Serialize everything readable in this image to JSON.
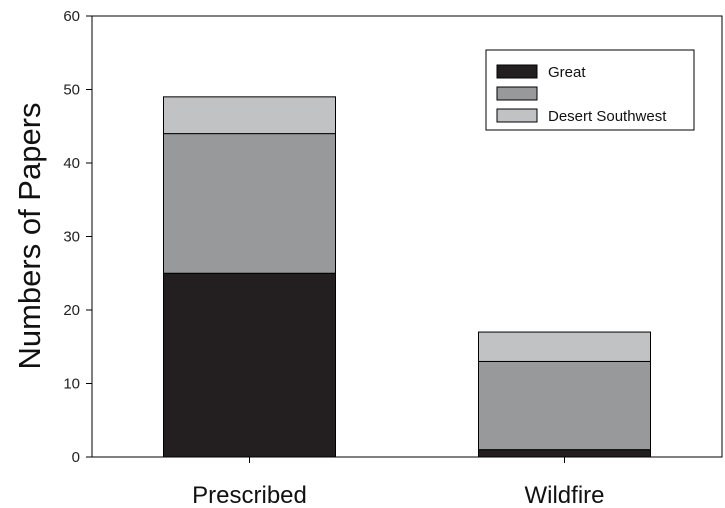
{
  "chart_data": {
    "type": "bar",
    "stacked": true,
    "categories": [
      "Prescribed",
      "Wildfire"
    ],
    "series": [
      {
        "name": "Great",
        "values": [
          25,
          1
        ],
        "color": "#231f20"
      },
      {
        "name": "",
        "values": [
          19,
          12
        ],
        "color": "#98999b"
      },
      {
        "name": "Desert Southwest",
        "values": [
          5,
          4
        ],
        "color": "#c1c2c4"
      }
    ],
    "ylabel": "Numbers of Papers",
    "xlabel": "",
    "ylim": [
      0,
      60
    ],
    "yticks": [
      0,
      10,
      20,
      30,
      40,
      50,
      60
    ],
    "grid": false,
    "legend_position": "top-right"
  }
}
